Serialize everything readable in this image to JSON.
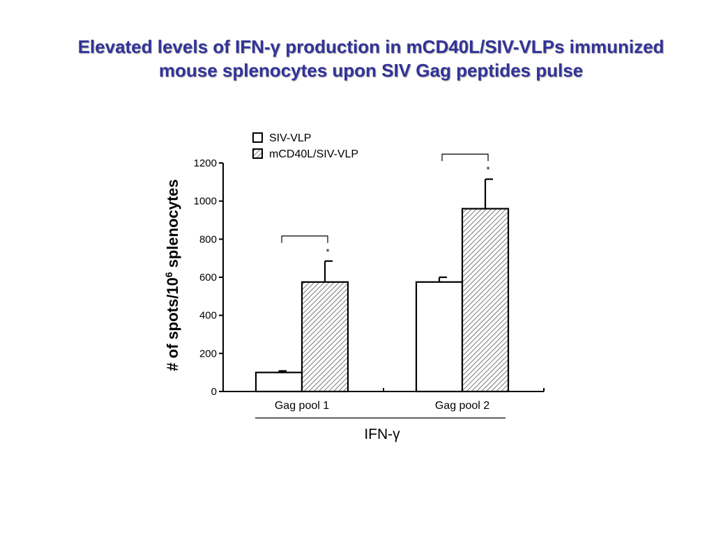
{
  "slide": {
    "title_line1": "Elevated levels of IFN-γ production in mCD40L/SIV-VLPs immunized",
    "title_line2": "mouse splenocytes upon SIV Gag peptides pulse",
    "title_color": "#333399"
  },
  "chart_data": {
    "type": "bar",
    "title": "",
    "categories": [
      "Gag pool 1",
      "Gag pool 2"
    ],
    "series": [
      {
        "name": "SIV-VLP",
        "values": [
          100,
          575
        ],
        "errors": [
          8,
          25
        ],
        "fill": "white"
      },
      {
        "name": "mCD40L/SIV-VLP",
        "values": [
          575,
          960
        ],
        "errors": [
          110,
          155
        ],
        "fill": "hatched"
      }
    ],
    "ylabel_main": "# of spots/10",
    "ylabel_sup": "6",
    "ylabel_tail": " splenocytes",
    "xlabel": "IFN-γ",
    "ylim": [
      0,
      1200
    ],
    "yticks": [
      0,
      200,
      400,
      600,
      800,
      1000,
      1200
    ],
    "significance": [
      {
        "category": "Gag pool 1",
        "marker": "*"
      },
      {
        "category": "Gag pool 2",
        "marker": "*"
      }
    ],
    "legend_position": "top-left",
    "grid": false
  }
}
